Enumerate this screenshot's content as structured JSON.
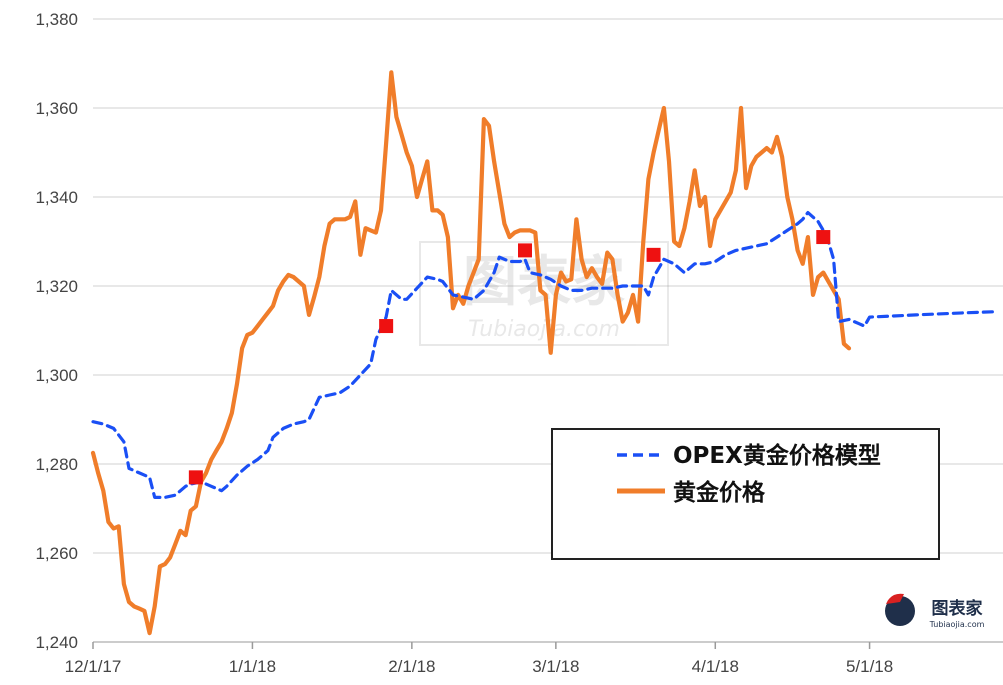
{
  "chart_data": {
    "type": "line",
    "xlim": [
      "2017-12-01",
      "2018-05-25"
    ],
    "ylim": [
      1240,
      1380
    ],
    "y_ticks": [
      "1,240",
      "1,260",
      "1,280",
      "1,300",
      "1,320",
      "1,340",
      "1,360",
      "1,380"
    ],
    "x_ticks": [
      {
        "date": "2017-12-01",
        "label": "12/1/17"
      },
      {
        "date": "2018-01-01",
        "label": "1/1/18"
      },
      {
        "date": "2018-02-01",
        "label": "2/1/18"
      },
      {
        "date": "2018-03-01",
        "label": "3/1/18"
      },
      {
        "date": "2018-04-01",
        "label": "4/1/18"
      },
      {
        "date": "2018-05-01",
        "label": "5/1/18"
      }
    ],
    "grid": "horizontal",
    "legend_position": "lower-right",
    "series": [
      {
        "name": "OPEX黄金价格模型",
        "style": "dashed",
        "color": "#1a4ff5",
        "points": [
          [
            "2017-12-01",
            1289.5
          ],
          [
            "2017-12-03",
            1289
          ],
          [
            "2017-12-05",
            1288
          ],
          [
            "2017-12-07",
            1285
          ],
          [
            "2017-12-08",
            1279
          ],
          [
            "2017-12-10",
            1278
          ],
          [
            "2017-12-12",
            1277
          ],
          [
            "2017-12-13",
            1272.5
          ],
          [
            "2017-12-15",
            1272.5
          ],
          [
            "2017-12-17",
            1273
          ],
          [
            "2017-12-19",
            1275
          ],
          [
            "2017-12-20",
            1275.5
          ],
          [
            "2017-12-22",
            1276
          ],
          [
            "2017-12-24",
            1275
          ],
          [
            "2017-12-26",
            1274
          ],
          [
            "2017-12-27",
            1275
          ],
          [
            "2017-12-29",
            1277.5
          ],
          [
            "2017-12-31",
            1279.5
          ],
          [
            "2018-01-02",
            1281
          ],
          [
            "2018-01-04",
            1283
          ],
          [
            "2018-01-05",
            1286
          ],
          [
            "2018-01-07",
            1288
          ],
          [
            "2018-01-09",
            1289
          ],
          [
            "2018-01-11",
            1289.5
          ],
          [
            "2018-01-12",
            1290
          ],
          [
            "2018-01-14",
            1295
          ],
          [
            "2018-01-16",
            1295.5
          ],
          [
            "2018-01-18",
            1296
          ],
          [
            "2018-01-20",
            1297.5
          ],
          [
            "2018-01-22",
            1300
          ],
          [
            "2018-01-24",
            1302.5
          ],
          [
            "2018-01-25",
            1308
          ],
          [
            "2018-01-27",
            1313
          ],
          [
            "2018-01-28",
            1319
          ],
          [
            "2018-01-30",
            1317
          ],
          [
            "2018-01-31",
            1317
          ],
          [
            "2018-02-02",
            1319.5
          ],
          [
            "2018-02-04",
            1322
          ],
          [
            "2018-02-06",
            1321.5
          ],
          [
            "2018-02-07",
            1321
          ],
          [
            "2018-02-09",
            1318
          ],
          [
            "2018-02-11",
            1317.5
          ],
          [
            "2018-02-13",
            1317
          ],
          [
            "2018-02-15",
            1319
          ],
          [
            "2018-02-17",
            1323
          ],
          [
            "2018-02-18",
            1326.5
          ],
          [
            "2018-02-20",
            1325.5
          ],
          [
            "2018-02-22",
            1325.5
          ],
          [
            "2018-02-23",
            1326
          ],
          [
            "2018-02-24",
            1323
          ],
          [
            "2018-02-26",
            1322.5
          ],
          [
            "2018-02-28",
            1321.5
          ],
          [
            "2018-03-02",
            1320
          ],
          [
            "2018-03-04",
            1319
          ],
          [
            "2018-03-06",
            1319
          ],
          [
            "2018-03-08",
            1319.5
          ],
          [
            "2018-03-10",
            1319.5
          ],
          [
            "2018-03-12",
            1319.5
          ],
          [
            "2018-03-14",
            1320
          ],
          [
            "2018-03-16",
            1320
          ],
          [
            "2018-03-18",
            1320
          ],
          [
            "2018-03-19",
            1318
          ],
          [
            "2018-03-20",
            1322
          ],
          [
            "2018-03-22",
            1326
          ],
          [
            "2018-03-24",
            1325
          ],
          [
            "2018-03-26",
            1323
          ],
          [
            "2018-03-28",
            1325
          ],
          [
            "2018-03-30",
            1325
          ],
          [
            "2018-04-01",
            1325.5
          ],
          [
            "2018-04-03",
            1327
          ],
          [
            "2018-04-05",
            1328
          ],
          [
            "2018-04-07",
            1328.5
          ],
          [
            "2018-04-09",
            1329
          ],
          [
            "2018-04-11",
            1329.5
          ],
          [
            "2018-04-13",
            1331
          ],
          [
            "2018-04-15",
            1332.5
          ],
          [
            "2018-04-17",
            1334
          ],
          [
            "2018-04-18",
            1335
          ],
          [
            "2018-04-19",
            1336.5
          ],
          [
            "2018-04-21",
            1334.5
          ],
          [
            "2018-04-22",
            1332.5
          ],
          [
            "2018-04-23",
            1330
          ],
          [
            "2018-04-24",
            1326
          ],
          [
            "2018-04-25",
            1312
          ],
          [
            "2018-04-27",
            1312.5
          ],
          [
            "2018-04-29",
            1311.5
          ],
          [
            "2018-04-30",
            1311
          ],
          [
            "2018-05-01",
            1313
          ],
          [
            "2018-05-10",
            1313.5
          ],
          [
            "2018-05-20",
            1314
          ],
          [
            "2018-05-25",
            1314.2
          ]
        ]
      },
      {
        "name": "黄金价格",
        "style": "solid",
        "color": "#f07d2a",
        "points": [
          [
            "2017-12-01",
            1282.5
          ],
          [
            "2017-12-02",
            1278
          ],
          [
            "2017-12-03",
            1274
          ],
          [
            "2017-12-04",
            1267
          ],
          [
            "2017-12-05",
            1265.5
          ],
          [
            "2017-12-06",
            1266
          ],
          [
            "2017-12-07",
            1253
          ],
          [
            "2017-12-08",
            1249
          ],
          [
            "2017-12-09",
            1248
          ],
          [
            "2017-12-10",
            1247.5
          ],
          [
            "2017-12-11",
            1247
          ],
          [
            "2017-12-12",
            1242
          ],
          [
            "2017-12-13",
            1248
          ],
          [
            "2017-12-14",
            1257
          ],
          [
            "2017-12-15",
            1257.5
          ],
          [
            "2017-12-16",
            1259
          ],
          [
            "2017-12-17",
            1262
          ],
          [
            "2017-12-18",
            1265
          ],
          [
            "2017-12-19",
            1264
          ],
          [
            "2017-12-20",
            1269.5
          ],
          [
            "2017-12-21",
            1270.5
          ],
          [
            "2017-12-22",
            1276
          ],
          [
            "2017-12-23",
            1278
          ],
          [
            "2017-12-24",
            1281
          ],
          [
            "2017-12-25",
            1283
          ],
          [
            "2017-12-26",
            1285
          ],
          [
            "2017-12-27",
            1288
          ],
          [
            "2017-12-28",
            1291.5
          ],
          [
            "2017-12-29",
            1298
          ],
          [
            "2017-12-30",
            1306
          ],
          [
            "2017-12-31",
            1309
          ],
          [
            "2018-01-01",
            1309.5
          ],
          [
            "2018-01-02",
            1311
          ],
          [
            "2018-01-03",
            1312.5
          ],
          [
            "2018-01-04",
            1314
          ],
          [
            "2018-01-05",
            1315.5
          ],
          [
            "2018-01-06",
            1319
          ],
          [
            "2018-01-07",
            1321
          ],
          [
            "2018-01-08",
            1322.5
          ],
          [
            "2018-01-09",
            1322
          ],
          [
            "2018-01-10",
            1321
          ],
          [
            "2018-01-11",
            1320
          ],
          [
            "2018-01-12",
            1313.5
          ],
          [
            "2018-01-13",
            1317.5
          ],
          [
            "2018-01-14",
            1322
          ],
          [
            "2018-01-15",
            1329
          ],
          [
            "2018-01-16",
            1334
          ],
          [
            "2018-01-17",
            1335
          ],
          [
            "2018-01-18",
            1335
          ],
          [
            "2018-01-19",
            1335
          ],
          [
            "2018-01-20",
            1335.5
          ],
          [
            "2018-01-21",
            1339
          ],
          [
            "2018-01-22",
            1327
          ],
          [
            "2018-01-23",
            1333
          ],
          [
            "2018-01-24",
            1332.5
          ],
          [
            "2018-01-25",
            1332
          ],
          [
            "2018-01-26",
            1337
          ],
          [
            "2018-01-27",
            1352
          ],
          [
            "2018-01-28",
            1368
          ],
          [
            "2018-01-29",
            1358
          ],
          [
            "2018-01-30",
            1354
          ],
          [
            "2018-01-31",
            1350
          ],
          [
            "2018-02-01",
            1347
          ],
          [
            "2018-02-02",
            1340
          ],
          [
            "2018-02-03",
            1344
          ],
          [
            "2018-02-04",
            1348
          ],
          [
            "2018-02-05",
            1337
          ],
          [
            "2018-02-06",
            1337
          ],
          [
            "2018-02-07",
            1336
          ],
          [
            "2018-02-08",
            1331
          ],
          [
            "2018-02-09",
            1315
          ],
          [
            "2018-02-10",
            1318
          ],
          [
            "2018-02-11",
            1316
          ],
          [
            "2018-02-12",
            1320
          ],
          [
            "2018-02-13",
            1323
          ],
          [
            "2018-02-14",
            1326
          ],
          [
            "2018-02-15",
            1357.5
          ],
          [
            "2018-02-16",
            1356
          ],
          [
            "2018-02-17",
            1348
          ],
          [
            "2018-02-18",
            1341
          ],
          [
            "2018-02-19",
            1334
          ],
          [
            "2018-02-20",
            1331
          ],
          [
            "2018-02-21",
            1332
          ],
          [
            "2018-02-22",
            1332.5
          ],
          [
            "2018-02-23",
            1332.5
          ],
          [
            "2018-02-24",
            1332.5
          ],
          [
            "2018-02-25",
            1332
          ],
          [
            "2018-02-26",
            1319
          ],
          [
            "2018-02-27",
            1318
          ],
          [
            "2018-02-28",
            1305
          ],
          [
            "2018-03-01",
            1318
          ],
          [
            "2018-03-02",
            1323
          ],
          [
            "2018-03-03",
            1321
          ],
          [
            "2018-03-04",
            1321.5
          ],
          [
            "2018-03-05",
            1335
          ],
          [
            "2018-03-06",
            1326
          ],
          [
            "2018-03-07",
            1322
          ],
          [
            "2018-03-08",
            1324
          ],
          [
            "2018-03-09",
            1322
          ],
          [
            "2018-03-10",
            1320.5
          ],
          [
            "2018-03-11",
            1327.5
          ],
          [
            "2018-03-12",
            1326
          ],
          [
            "2018-03-13",
            1318
          ],
          [
            "2018-03-14",
            1312
          ],
          [
            "2018-03-15",
            1314
          ],
          [
            "2018-03-16",
            1318
          ],
          [
            "2018-03-17",
            1312
          ],
          [
            "2018-03-18",
            1330
          ],
          [
            "2018-03-19",
            1344
          ],
          [
            "2018-03-20",
            1350
          ],
          [
            "2018-03-21",
            1355
          ],
          [
            "2018-03-22",
            1360
          ],
          [
            "2018-03-23",
            1348
          ],
          [
            "2018-03-24",
            1330
          ],
          [
            "2018-03-25",
            1329
          ],
          [
            "2018-03-26",
            1333
          ],
          [
            "2018-03-27",
            1339
          ],
          [
            "2018-03-28",
            1346
          ],
          [
            "2018-03-29",
            1338
          ],
          [
            "2018-03-30",
            1340
          ],
          [
            "2018-03-31",
            1329
          ],
          [
            "2018-04-01",
            1335
          ],
          [
            "2018-04-02",
            1337
          ],
          [
            "2018-04-03",
            1339
          ],
          [
            "2018-04-04",
            1341
          ],
          [
            "2018-04-05",
            1346
          ],
          [
            "2018-04-06",
            1360
          ],
          [
            "2018-04-07",
            1342
          ],
          [
            "2018-04-08",
            1347
          ],
          [
            "2018-04-09",
            1349
          ],
          [
            "2018-04-10",
            1350
          ],
          [
            "2018-04-11",
            1351
          ],
          [
            "2018-04-12",
            1350
          ],
          [
            "2018-04-13",
            1353.5
          ],
          [
            "2018-04-14",
            1349
          ],
          [
            "2018-04-15",
            1340
          ],
          [
            "2018-04-16",
            1335
          ],
          [
            "2018-04-17",
            1328
          ],
          [
            "2018-04-18",
            1325
          ],
          [
            "2018-04-19",
            1331
          ],
          [
            "2018-04-20",
            1318
          ],
          [
            "2018-04-21",
            1322
          ],
          [
            "2018-04-22",
            1323
          ],
          [
            "2018-04-23",
            1321
          ],
          [
            "2018-04-24",
            1319
          ],
          [
            "2018-04-25",
            1317
          ],
          [
            "2018-04-26",
            1307
          ],
          [
            "2018-04-27",
            1306
          ]
        ]
      }
    ],
    "markers": {
      "shape": "square",
      "color": "#ee1111",
      "points": [
        [
          "2017-12-21",
          1277
        ],
        [
          "2018-01-27",
          1311
        ],
        [
          "2018-02-23",
          1328
        ],
        [
          "2018-03-20",
          1327
        ],
        [
          "2018-04-22",
          1331
        ]
      ]
    },
    "legend": {
      "items": [
        {
          "label": "OPEX黄金价格模型",
          "style": "dashed",
          "color": "#1a4ff5"
        },
        {
          "label": "黄金价格",
          "style": "solid",
          "color": "#f07d2a"
        }
      ]
    },
    "watermark": {
      "text": "图表家",
      "subtext": "Tubiaojia.com"
    },
    "logo": {
      "text": "图表家",
      "subtext": "Tubiaojia.com"
    }
  }
}
